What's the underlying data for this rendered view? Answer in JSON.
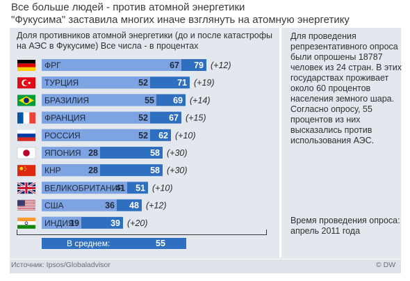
{
  "header": {
    "title": "Все больше людей - против атомной энергетики",
    "subtitle": "\"Фукусима\" заставила многих иначе взглянуть на атомную энергетику"
  },
  "caption": "Доля противников атомной энергетики (до и после катастрофы на АЭС в Фукусиме) Все числа - в процентах",
  "note": "Для проведения репрезентативного опроса были опрошены 18787 человек из 24 стран. В этих государствах проживает около 60 процентов населения земного шара. Согласно опросу, 55 процентов из них высказались против использования АЭС.",
  "timeframe": "Время проведения опроса: апрель 2011 года",
  "summary": {
    "label": "В среднем:",
    "value": "55"
  },
  "footer": {
    "source": "Источник: Ipsos/Globaladvisor",
    "logo": "© DW"
  },
  "colors": {
    "before": "#7ea3e2",
    "after": "#2f6fc0",
    "panel": "#e3e8ef"
  },
  "chart_data": {
    "type": "bar",
    "orientation": "horizontal",
    "categories": [
      "ФРГ",
      "ТУРЦИЯ",
      "БРАЗИЛИЯ",
      "ФРАНЦИЯ",
      "РОССИЯ",
      "ЯПОНИЯ",
      "КНР",
      "ВЕЛИКОБРИТАНИЯ",
      "США",
      "ИНДИЯ"
    ],
    "flags": [
      "germany",
      "turkey",
      "brazil",
      "france",
      "russia",
      "japan",
      "china",
      "uk",
      "usa",
      "india"
    ],
    "series": [
      {
        "values": [
          67,
          52,
          55,
          52,
          52,
          28,
          28,
          41,
          36,
          19
        ]
      },
      {
        "values": [
          79,
          71,
          69,
          67,
          62,
          58,
          58,
          51,
          48,
          39
        ]
      }
    ],
    "change_labels": [
      "(+12)",
      "(+19)",
      "(+14)",
      "(+15)",
      "(+10)",
      "(+30)",
      "(+30)",
      "(+10)",
      "(+12)",
      "(+20)"
    ]
  }
}
